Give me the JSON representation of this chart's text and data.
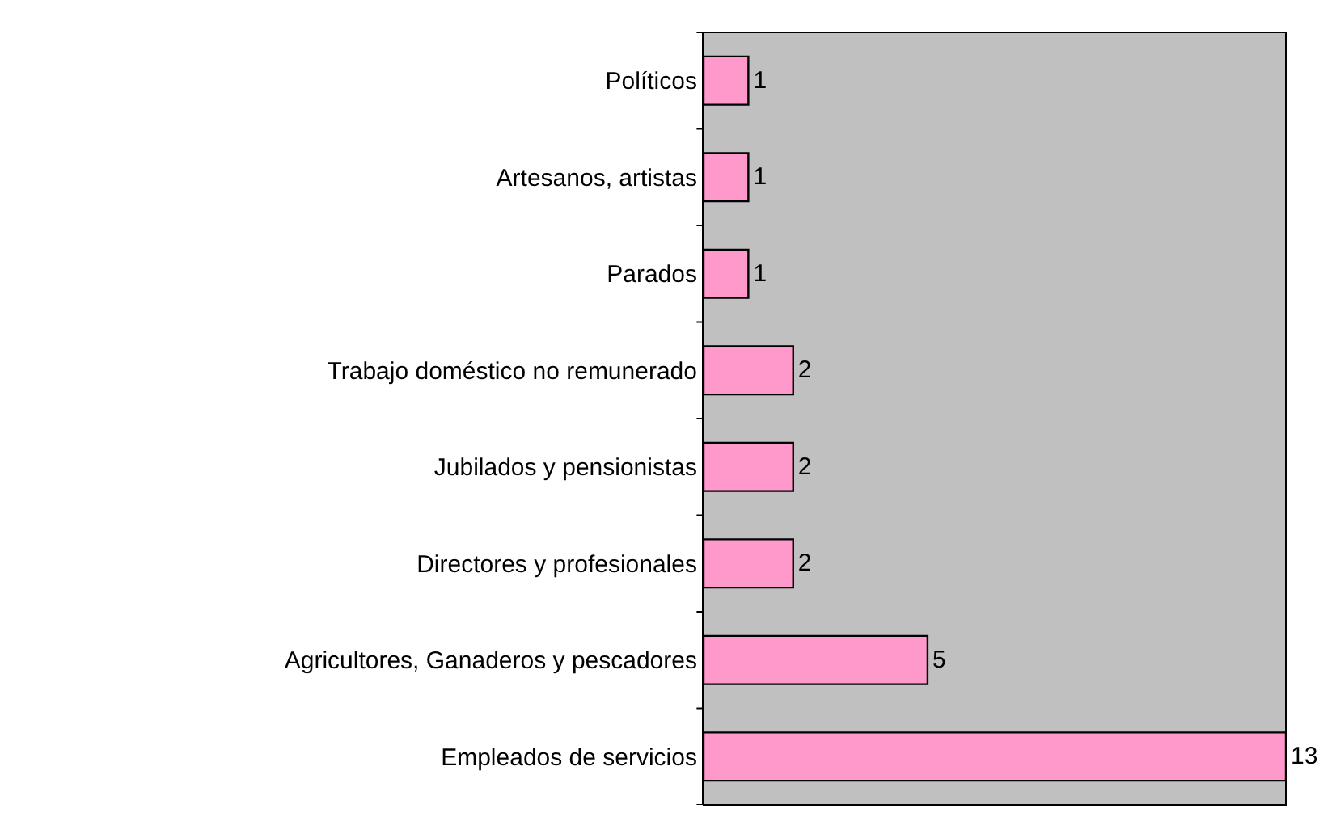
{
  "chart_data": {
    "type": "bar",
    "orientation": "horizontal",
    "categories": [
      "Políticos",
      "Artesanos, artistas",
      "Parados",
      "Trabajo doméstico no remunerado",
      "Jubilados y pensionistas",
      "Directores y profesionales",
      "Agricultores, Ganaderos y pescadores",
      "Empleados de servicios"
    ],
    "values": [
      1,
      1,
      1,
      2,
      2,
      2,
      5,
      13
    ],
    "color": "#ff99cc",
    "data_labels": true,
    "grid": false,
    "legend": false,
    "tick_labels": "y"
  }
}
